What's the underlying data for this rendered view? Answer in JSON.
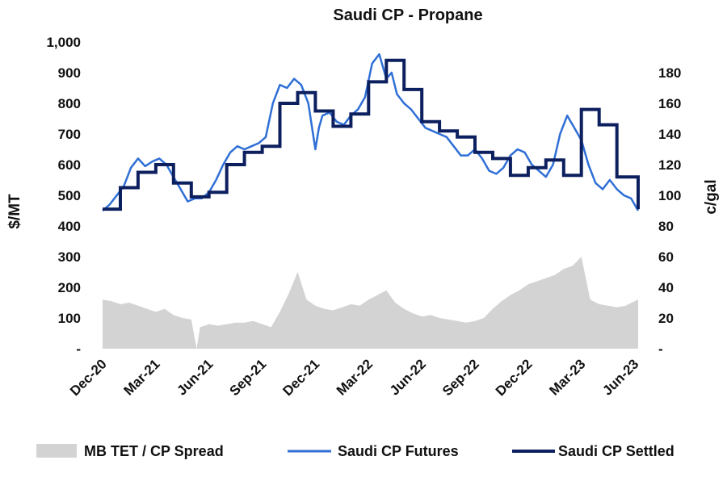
{
  "chart_data": {
    "type": "line",
    "title": "Saudi CP - Propane",
    "ylabel": "$/MT",
    "y2label": "c/gal",
    "ylim": [
      0,
      1000
    ],
    "y2lim": [
      0,
      200
    ],
    "y_ticks": [
      "-",
      "100",
      "200",
      "300",
      "400",
      "500",
      "600",
      "700",
      "800",
      "900",
      "1,000"
    ],
    "y_tick_values": [
      0,
      100,
      200,
      300,
      400,
      500,
      600,
      700,
      800,
      900,
      1000
    ],
    "y2_ticks": [
      "-",
      "20",
      "40",
      "60",
      "80",
      "100",
      "120",
      "140",
      "160",
      "180"
    ],
    "y2_tick_values": [
      0,
      20,
      40,
      60,
      80,
      100,
      120,
      140,
      160,
      180
    ],
    "x_range": [
      0,
      30.2
    ],
    "x_ticks": [
      "Dec-20",
      "Mar-21",
      "Jun-21",
      "Sep-21",
      "Dec-21",
      "Mar-22",
      "Jun-22",
      "Sep-22",
      "Dec-22",
      "Mar-23",
      "Jun-23"
    ],
    "x_tick_values": [
      0,
      3,
      6,
      9,
      12,
      15,
      18,
      21,
      24,
      27,
      30
    ],
    "x_unit": "months since Dec-20",
    "legend": [
      "MB TET / CP Spread",
      "Saudi CP Futures",
      "Saudi CP Settled"
    ],
    "legend_position": "bottom",
    "colors": {
      "spread": "#d3d3d3",
      "futures": "#2f6fd6",
      "settled": "#0c1f5e"
    },
    "series": [
      {
        "name": "MB TET / CP Spread",
        "type": "area",
        "x": [
          0,
          0.5,
          1,
          1.5,
          2,
          2.5,
          3,
          3.5,
          4,
          4.5,
          5,
          5.3,
          5.5,
          6,
          6.5,
          7,
          7.5,
          8,
          8.5,
          9,
          9.5,
          10,
          10.5,
          11,
          11.5,
          12,
          12.5,
          13,
          13.5,
          14,
          14.5,
          15,
          15.5,
          16,
          16.5,
          17,
          17.5,
          18,
          18.5,
          19,
          19.5,
          20,
          20.5,
          21,
          21.5,
          22,
          22.5,
          23,
          23.5,
          24,
          24.5,
          25,
          25.5,
          26,
          26.5,
          27,
          27.5,
          28,
          28.5,
          29,
          29.5,
          30,
          30.2
        ],
        "values": [
          160,
          155,
          145,
          150,
          140,
          130,
          120,
          130,
          110,
          100,
          95,
          0,
          70,
          80,
          75,
          80,
          85,
          85,
          90,
          80,
          70,
          120,
          180,
          250,
          160,
          140,
          130,
          125,
          135,
          145,
          140,
          160,
          175,
          190,
          150,
          130,
          115,
          105,
          110,
          100,
          95,
          90,
          85,
          90,
          100,
          130,
          155,
          175,
          190,
          210,
          220,
          230,
          240,
          260,
          270,
          300,
          160,
          145,
          140,
          135,
          140,
          155,
          160
        ]
      },
      {
        "name": "Saudi CP Futures",
        "type": "line",
        "x": [
          0,
          0.4,
          0.8,
          1.2,
          1.6,
          2,
          2.4,
          2.8,
          3.2,
          3.6,
          4,
          4.4,
          4.8,
          5.2,
          5.6,
          6,
          6.4,
          6.8,
          7.2,
          7.6,
          8,
          8.4,
          8.8,
          9.2,
          9.6,
          10,
          10.4,
          10.8,
          11.2,
          11.6,
          12,
          12.2,
          12.4,
          12.8,
          13.2,
          13.6,
          14,
          14.4,
          14.8,
          15.2,
          15.6,
          16,
          16.3,
          16.6,
          17,
          17.4,
          17.8,
          18.2,
          18.6,
          19,
          19.4,
          19.8,
          20.2,
          20.6,
          21,
          21.4,
          21.8,
          22.2,
          22.6,
          23,
          23.4,
          23.8,
          24.2,
          24.6,
          25,
          25.4,
          25.8,
          26.2,
          26.6,
          27,
          27.4,
          27.8,
          28.2,
          28.6,
          29,
          29.4,
          29.8,
          30.2
        ],
        "values": [
          450,
          470,
          500,
          530,
          590,
          620,
          595,
          610,
          620,
          600,
          560,
          520,
          480,
          490,
          490,
          510,
          550,
          600,
          640,
          660,
          650,
          660,
          670,
          690,
          800,
          860,
          850,
          880,
          860,
          800,
          650,
          720,
          760,
          770,
          740,
          730,
          760,
          780,
          820,
          930,
          960,
          880,
          900,
          830,
          800,
          780,
          750,
          720,
          710,
          700,
          690,
          660,
          630,
          630,
          650,
          620,
          580,
          570,
          590,
          630,
          650,
          640,
          600,
          580,
          560,
          600,
          700,
          760,
          720,
          680,
          600,
          540,
          520,
          550,
          520,
          500,
          490,
          450
        ]
      },
      {
        "name": "Saudi CP Settled",
        "type": "step",
        "x": [
          0,
          1,
          2,
          3,
          4,
          5,
          6,
          7,
          8,
          9,
          10,
          11,
          12,
          13,
          14,
          15,
          16,
          17,
          18,
          19,
          20,
          21,
          22,
          23,
          24,
          25,
          26,
          27,
          28,
          29,
          30.2
        ],
        "values": [
          455,
          525,
          575,
          600,
          540,
          495,
          510,
          600,
          640,
          660,
          800,
          835,
          775,
          725,
          765,
          870,
          940,
          845,
          740,
          710,
          690,
          640,
          620,
          565,
          590,
          615,
          565,
          780,
          730,
          560,
          455
        ]
      }
    ]
  }
}
